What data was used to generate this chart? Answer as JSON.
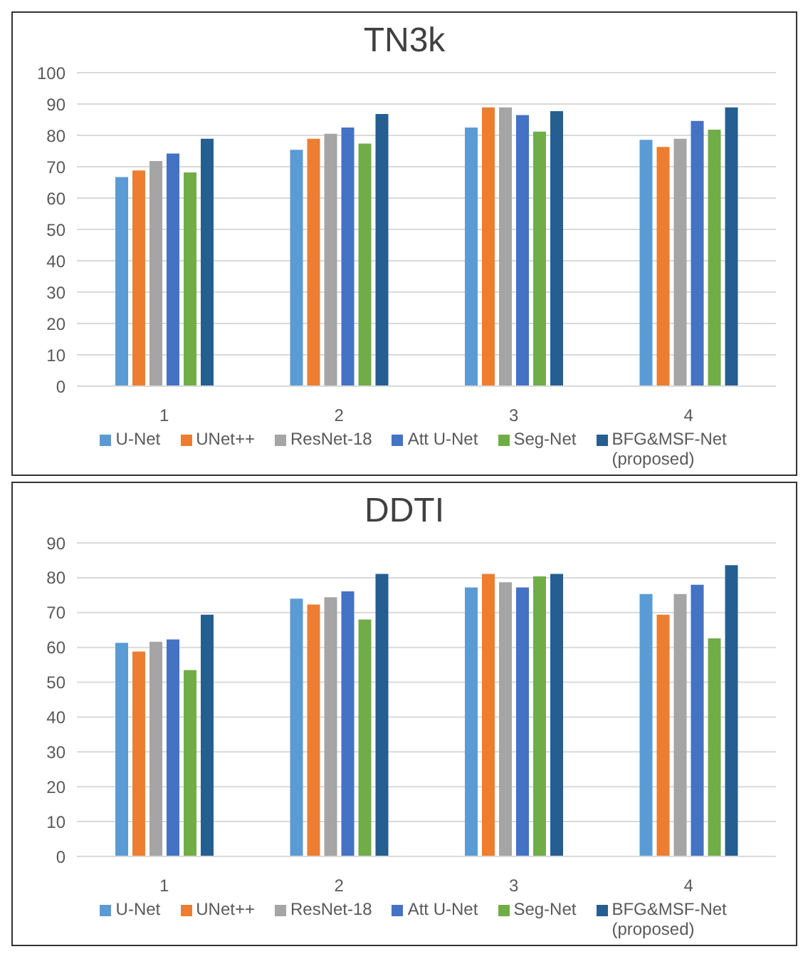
{
  "chart_data": [
    {
      "type": "bar",
      "title": "TN3k",
      "categories": [
        "1",
        "2",
        "3",
        "4"
      ],
      "ylim": [
        0,
        100
      ],
      "yticks": [
        0,
        10,
        20,
        30,
        40,
        50,
        60,
        70,
        80,
        90,
        100
      ],
      "grid": "y",
      "legend": "bottom",
      "series": [
        {
          "name": "U-Net",
          "color": "#5b9bd5",
          "values": [
            66.7,
            75.4,
            82.5,
            78.6
          ]
        },
        {
          "name": "UNet++",
          "color": "#ed7d31",
          "values": [
            68.8,
            78.9,
            88.9,
            76.3
          ]
        },
        {
          "name": "ResNet-18",
          "color": "#a5a5a5",
          "values": [
            71.8,
            80.5,
            88.9,
            78.9
          ]
        },
        {
          "name": "Att U-Net",
          "color": "#4472c4",
          "values": [
            74.2,
            82.5,
            86.5,
            84.6
          ]
        },
        {
          "name": "Seg-Net",
          "color": "#70ad47",
          "values": [
            68.2,
            77.4,
            81.2,
            81.8
          ]
        },
        {
          "name": "BFG&MSF-Net (proposed)",
          "color": "#255e91",
          "values": [
            78.9,
            86.8,
            87.7,
            88.9
          ]
        }
      ]
    },
    {
      "type": "bar",
      "title": "DDTI",
      "categories": [
        "1",
        "2",
        "3",
        "4"
      ],
      "ylim": [
        0,
        90
      ],
      "yticks": [
        0,
        10,
        20,
        30,
        40,
        50,
        60,
        70,
        80,
        90
      ],
      "grid": "y",
      "legend": "bottom",
      "series": [
        {
          "name": "U-Net",
          "color": "#5b9bd5",
          "values": [
            61.3,
            74.0,
            77.2,
            75.3
          ]
        },
        {
          "name": "UNet++",
          "color": "#ed7d31",
          "values": [
            58.8,
            72.3,
            81.1,
            69.4
          ]
        },
        {
          "name": "ResNet-18",
          "color": "#a5a5a5",
          "values": [
            61.6,
            74.4,
            78.7,
            75.3
          ]
        },
        {
          "name": "Att U-Net",
          "color": "#4472c4",
          "values": [
            62.3,
            76.1,
            77.2,
            78.0
          ]
        },
        {
          "name": "Seg-Net",
          "color": "#70ad47",
          "values": [
            53.5,
            68.0,
            80.4,
            62.6
          ]
        },
        {
          "name": "BFG&MSF-Net (proposed)",
          "color": "#255e91",
          "values": [
            69.4,
            81.1,
            81.1,
            83.6
          ]
        }
      ]
    }
  ]
}
